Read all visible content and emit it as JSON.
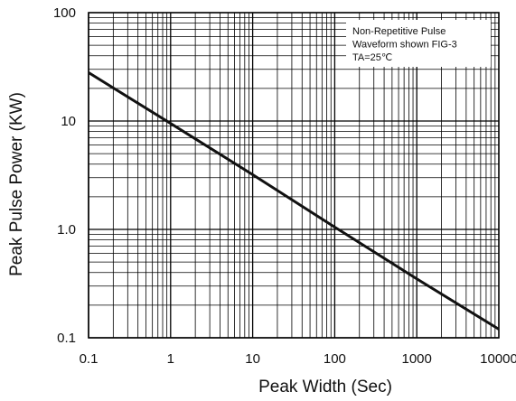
{
  "chart_data": {
    "type": "line",
    "title": "",
    "xlabel": "Peak Width (Sec)",
    "ylabel": "Peak Pulse Power (KW)",
    "xscale": "log",
    "yscale": "log",
    "xlim": [
      0.1,
      10000
    ],
    "ylim": [
      0.1,
      100
    ],
    "grid": true,
    "x_tick_labels": [
      "0.1",
      "1",
      "10",
      "100",
      "1000",
      "10000"
    ],
    "y_tick_labels": [
      "100",
      "10",
      "1.0",
      "0.1"
    ],
    "annotation": [
      "Non-Repetitive Pulse",
      "Waveform shown FIG-3",
      "TA=25℃"
    ],
    "series": [
      {
        "x": [
          0.1,
          1,
          10,
          100,
          1000,
          10000
        ],
        "y": [
          28,
          9.5,
          3.2,
          1.05,
          0.35,
          0.12
        ]
      }
    ],
    "colors": {
      "line": "#111111",
      "grid": "#000000",
      "background": "#ffffff"
    }
  }
}
